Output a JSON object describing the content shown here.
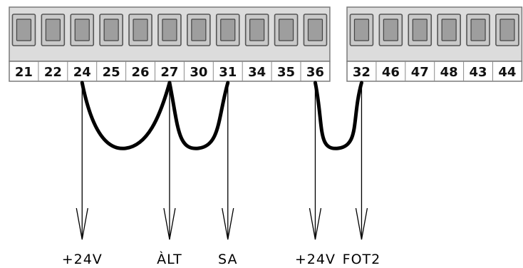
{
  "left_block": {
    "terminals": [
      "21",
      "22",
      "24",
      "25",
      "26",
      "27",
      "30",
      "31",
      "34",
      "35",
      "36"
    ]
  },
  "right_block": {
    "terminals": [
      "32",
      "46",
      "47",
      "48",
      "43",
      "44"
    ]
  },
  "jumpers": [
    {
      "from": "24",
      "to": "27"
    },
    {
      "from": "27",
      "to": "31"
    },
    {
      "from": "36",
      "to": "32"
    }
  ],
  "wires": [
    {
      "terminal": "24",
      "label": "+24V"
    },
    {
      "terminal": "27",
      "label": "ÀLT"
    },
    {
      "terminal": "31",
      "label": "SA"
    },
    {
      "terminal": "36",
      "label": "+24V"
    },
    {
      "terminal": "32",
      "label": "FOT2"
    }
  ]
}
